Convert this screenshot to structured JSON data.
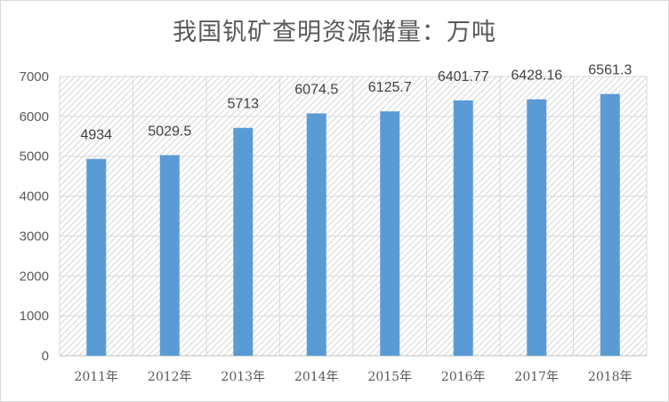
{
  "chart_data": {
    "type": "bar",
    "title": "我国钒矿查明资源储量：万吨",
    "categories": [
      "2011年",
      "2012年",
      "2013年",
      "2014年",
      "2015年",
      "2016年",
      "2017年",
      "2018年"
    ],
    "values": [
      4934,
      5029.5,
      5713,
      6074.5,
      6125.7,
      6401.77,
      6428.16,
      6561.3
    ],
    "data_labels": [
      "4934",
      "5029.5",
      "5713",
      "6074.5",
      "6125.7",
      "6401.77",
      "6428.16",
      "6561.3"
    ],
    "y_ticks": [
      "0",
      "1000",
      "2000",
      "3000",
      "4000",
      "5000",
      "6000",
      "7000"
    ],
    "ylim": [
      0,
      7000
    ],
    "grid": true,
    "legend": "none",
    "bar_color": "#5b9bd5",
    "plot_pattern": "diagonal-hatch"
  }
}
